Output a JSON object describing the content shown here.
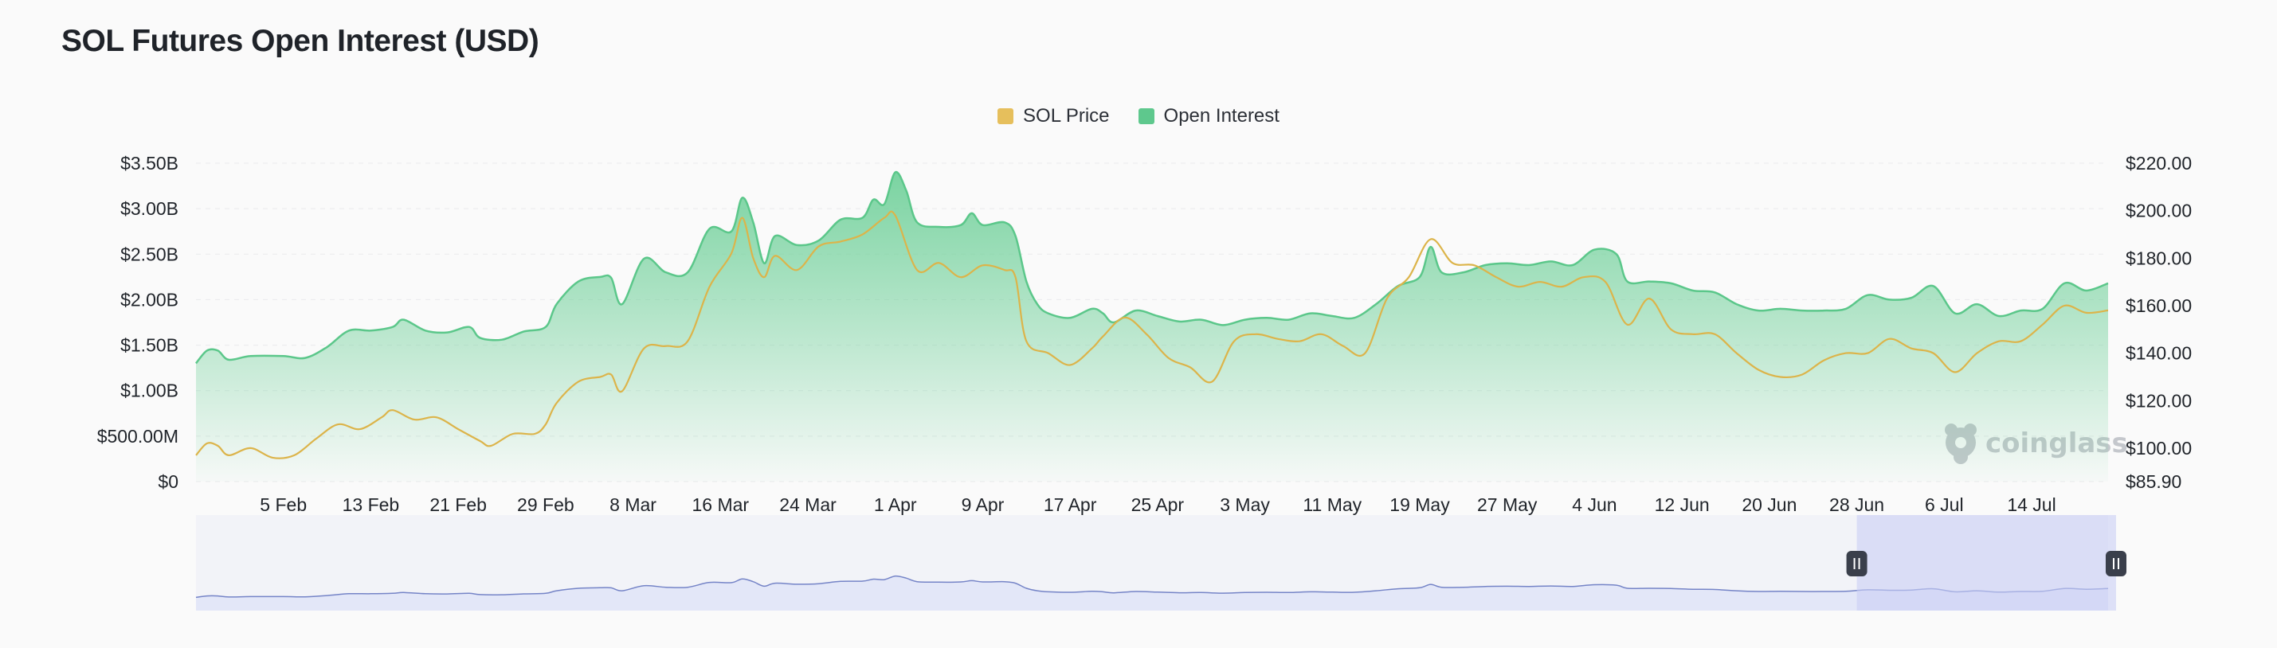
{
  "page": {
    "title": "SOL Futures Open Interest (USD)"
  },
  "legend": [
    {
      "label": "SOL Price",
      "color": "#e6bf5c"
    },
    {
      "label": "Open Interest",
      "color": "#5ec88d"
    }
  ],
  "watermark": {
    "text": "coinglass",
    "icon": "coinglass-logo-icon"
  },
  "colors": {
    "price_line": "#dcb44a",
    "oi_line": "#5bc78a",
    "oi_fill_top": "#6ccf97",
    "navigator_fill": "#e3e7f8",
    "navigator_line": "#7584c7",
    "navigator_selection": "#c9cff5",
    "handle": "#3a3f4b"
  },
  "navigator": {
    "selection_start": "2024-06-28",
    "selection_end": "2024-07-21"
  },
  "chart_data": {
    "type": "area",
    "title": "SOL Futures Open Interest (USD)",
    "legend_position": "top-center",
    "grid": true,
    "x_start": "2024-01-28",
    "x_end": "2024-07-21",
    "x_tick_labels": [
      "5 Feb",
      "13 Feb",
      "21 Feb",
      "29 Feb",
      "8 Mar",
      "16 Mar",
      "24 Mar",
      "1 Apr",
      "9 Apr",
      "17 Apr",
      "25 Apr",
      "3 May",
      "11 May",
      "19 May",
      "27 May",
      "4 Jun",
      "12 Jun",
      "20 Jun",
      "28 Jun",
      "6 Jul",
      "14 Jul"
    ],
    "x_tick_dates": [
      "2024-02-05",
      "2024-02-13",
      "2024-02-21",
      "2024-02-29",
      "2024-03-08",
      "2024-03-16",
      "2024-03-24",
      "2024-04-01",
      "2024-04-09",
      "2024-04-17",
      "2024-04-25",
      "2024-05-03",
      "2024-05-11",
      "2024-05-19",
      "2024-05-27",
      "2024-06-04",
      "2024-06-12",
      "2024-06-20",
      "2024-06-28",
      "2024-07-06",
      "2024-07-14"
    ],
    "y_left": {
      "min": 0,
      "max": 3.5,
      "unit": "B USD",
      "tick_values": [
        0,
        0.5,
        1,
        1.5,
        2,
        2.5,
        3,
        3.5
      ],
      "tick_labels": [
        "$0",
        "$500.00M",
        "$1.00B",
        "$1.50B",
        "$2.00B",
        "$2.50B",
        "$3.00B",
        "$3.50B"
      ]
    },
    "y_right": {
      "min": 85.9,
      "max": 220,
      "unit": "USD",
      "tick_values": [
        85.9,
        100,
        120,
        140,
        160,
        180,
        200,
        220
      ],
      "tick_labels": [
        "$85.90",
        "$100.00",
        "$120.00",
        "$140.00",
        "$160.00",
        "$180.00",
        "$200.00",
        "$220.00"
      ]
    },
    "series": [
      {
        "name": "Open Interest",
        "axis": "left",
        "points": [
          [
            "2024-01-28",
            1.3
          ],
          [
            "2024-01-29",
            1.44
          ],
          [
            "2024-01-30",
            1.44
          ],
          [
            "2024-01-31",
            1.34
          ],
          [
            "2024-02-02",
            1.38
          ],
          [
            "2024-02-05",
            1.38
          ],
          [
            "2024-02-07",
            1.36
          ],
          [
            "2024-02-09",
            1.48
          ],
          [
            "2024-02-11",
            1.66
          ],
          [
            "2024-02-13",
            1.66
          ],
          [
            "2024-02-15",
            1.7
          ],
          [
            "2024-02-16",
            1.78
          ],
          [
            "2024-02-18",
            1.66
          ],
          [
            "2024-02-20",
            1.64
          ],
          [
            "2024-02-22",
            1.7
          ],
          [
            "2024-02-23",
            1.58
          ],
          [
            "2024-02-25",
            1.56
          ],
          [
            "2024-02-27",
            1.65
          ],
          [
            "2024-02-29",
            1.7
          ],
          [
            "2024-03-01",
            1.95
          ],
          [
            "2024-03-03",
            2.2
          ],
          [
            "2024-03-05",
            2.25
          ],
          [
            "2024-03-06",
            2.24
          ],
          [
            "2024-03-07",
            1.95
          ],
          [
            "2024-03-09",
            2.45
          ],
          [
            "2024-03-11",
            2.3
          ],
          [
            "2024-03-13",
            2.3
          ],
          [
            "2024-03-15",
            2.78
          ],
          [
            "2024-03-17",
            2.75
          ],
          [
            "2024-03-18",
            3.12
          ],
          [
            "2024-03-19",
            2.85
          ],
          [
            "2024-03-20",
            2.4
          ],
          [
            "2024-03-21",
            2.7
          ],
          [
            "2024-03-23",
            2.6
          ],
          [
            "2024-03-25",
            2.65
          ],
          [
            "2024-03-27",
            2.88
          ],
          [
            "2024-03-29",
            2.9
          ],
          [
            "2024-03-30",
            3.1
          ],
          [
            "2024-03-31",
            3.05
          ],
          [
            "2024-04-01",
            3.4
          ],
          [
            "2024-04-02",
            3.2
          ],
          [
            "2024-04-03",
            2.85
          ],
          [
            "2024-04-05",
            2.8
          ],
          [
            "2024-04-07",
            2.82
          ],
          [
            "2024-04-08",
            2.95
          ],
          [
            "2024-04-09",
            2.82
          ],
          [
            "2024-04-11",
            2.85
          ],
          [
            "2024-04-12",
            2.7
          ],
          [
            "2024-04-13",
            2.2
          ],
          [
            "2024-04-14",
            1.95
          ],
          [
            "2024-04-15",
            1.85
          ],
          [
            "2024-04-17",
            1.8
          ],
          [
            "2024-04-19",
            1.9
          ],
          [
            "2024-04-20",
            1.85
          ],
          [
            "2024-04-21",
            1.75
          ],
          [
            "2024-04-23",
            1.88
          ],
          [
            "2024-04-25",
            1.82
          ],
          [
            "2024-04-27",
            1.76
          ],
          [
            "2024-04-29",
            1.78
          ],
          [
            "2024-05-01",
            1.72
          ],
          [
            "2024-05-03",
            1.78
          ],
          [
            "2024-05-05",
            1.8
          ],
          [
            "2024-05-07",
            1.78
          ],
          [
            "2024-05-09",
            1.85
          ],
          [
            "2024-05-11",
            1.82
          ],
          [
            "2024-05-13",
            1.8
          ],
          [
            "2024-05-15",
            1.95
          ],
          [
            "2024-05-17",
            2.15
          ],
          [
            "2024-05-19",
            2.25
          ],
          [
            "2024-05-20",
            2.58
          ],
          [
            "2024-05-21",
            2.3
          ],
          [
            "2024-05-23",
            2.3
          ],
          [
            "2024-05-25",
            2.38
          ],
          [
            "2024-05-27",
            2.4
          ],
          [
            "2024-05-29",
            2.38
          ],
          [
            "2024-05-31",
            2.42
          ],
          [
            "2024-06-02",
            2.38
          ],
          [
            "2024-06-04",
            2.55
          ],
          [
            "2024-06-06",
            2.5
          ],
          [
            "2024-06-07",
            2.2
          ],
          [
            "2024-06-09",
            2.2
          ],
          [
            "2024-06-11",
            2.18
          ],
          [
            "2024-06-13",
            2.1
          ],
          [
            "2024-06-15",
            2.08
          ],
          [
            "2024-06-17",
            1.95
          ],
          [
            "2024-06-19",
            1.88
          ],
          [
            "2024-06-21",
            1.9
          ],
          [
            "2024-06-23",
            1.88
          ],
          [
            "2024-06-25",
            1.88
          ],
          [
            "2024-06-27",
            1.9
          ],
          [
            "2024-06-29",
            2.05
          ],
          [
            "2024-07-01",
            2.0
          ],
          [
            "2024-07-03",
            2.02
          ],
          [
            "2024-07-05",
            2.15
          ],
          [
            "2024-07-07",
            1.85
          ],
          [
            "2024-07-09",
            1.95
          ],
          [
            "2024-07-11",
            1.82
          ],
          [
            "2024-07-13",
            1.88
          ],
          [
            "2024-07-15",
            1.9
          ],
          [
            "2024-07-17",
            2.18
          ],
          [
            "2024-07-19",
            2.1
          ],
          [
            "2024-07-21",
            2.18
          ]
        ]
      },
      {
        "name": "SOL Price",
        "axis": "right",
        "points": [
          [
            "2024-01-28",
            97
          ],
          [
            "2024-01-29",
            102
          ],
          [
            "2024-01-30",
            101
          ],
          [
            "2024-01-31",
            97
          ],
          [
            "2024-02-02",
            100
          ],
          [
            "2024-02-04",
            96
          ],
          [
            "2024-02-06",
            97
          ],
          [
            "2024-02-08",
            104
          ],
          [
            "2024-02-10",
            110
          ],
          [
            "2024-02-12",
            108
          ],
          [
            "2024-02-14",
            113
          ],
          [
            "2024-02-15",
            116
          ],
          [
            "2024-02-17",
            112
          ],
          [
            "2024-02-19",
            113
          ],
          [
            "2024-02-21",
            108
          ],
          [
            "2024-02-23",
            103
          ],
          [
            "2024-02-24",
            101
          ],
          [
            "2024-02-26",
            106
          ],
          [
            "2024-02-28",
            106
          ],
          [
            "2024-02-29",
            110
          ],
          [
            "2024-03-01",
            119
          ],
          [
            "2024-03-03",
            128
          ],
          [
            "2024-03-05",
            130
          ],
          [
            "2024-03-06",
            131
          ],
          [
            "2024-03-07",
            124
          ],
          [
            "2024-03-09",
            142
          ],
          [
            "2024-03-11",
            143
          ],
          [
            "2024-03-13",
            145
          ],
          [
            "2024-03-15",
            168
          ],
          [
            "2024-03-17",
            182
          ],
          [
            "2024-03-18",
            197
          ],
          [
            "2024-03-19",
            180
          ],
          [
            "2024-03-20",
            172
          ],
          [
            "2024-03-21",
            181
          ],
          [
            "2024-03-23",
            175
          ],
          [
            "2024-03-25",
            185
          ],
          [
            "2024-03-27",
            187
          ],
          [
            "2024-03-29",
            190
          ],
          [
            "2024-03-31",
            197
          ],
          [
            "2024-04-01",
            198
          ],
          [
            "2024-04-03",
            175
          ],
          [
            "2024-04-05",
            178
          ],
          [
            "2024-04-07",
            172
          ],
          [
            "2024-04-09",
            177
          ],
          [
            "2024-04-11",
            175
          ],
          [
            "2024-04-12",
            172
          ],
          [
            "2024-04-13",
            145
          ],
          [
            "2024-04-15",
            140
          ],
          [
            "2024-04-17",
            135
          ],
          [
            "2024-04-19",
            142
          ],
          [
            "2024-04-20",
            147
          ],
          [
            "2024-04-22",
            155
          ],
          [
            "2024-04-24",
            148
          ],
          [
            "2024-04-26",
            138
          ],
          [
            "2024-04-28",
            134
          ],
          [
            "2024-04-30",
            128
          ],
          [
            "2024-05-02",
            145
          ],
          [
            "2024-05-04",
            148
          ],
          [
            "2024-05-06",
            146
          ],
          [
            "2024-05-08",
            145
          ],
          [
            "2024-05-10",
            148
          ],
          [
            "2024-05-12",
            143
          ],
          [
            "2024-05-14",
            140
          ],
          [
            "2024-05-16",
            163
          ],
          [
            "2024-05-18",
            172
          ],
          [
            "2024-05-20",
            188
          ],
          [
            "2024-05-22",
            178
          ],
          [
            "2024-05-24",
            177
          ],
          [
            "2024-05-26",
            172
          ],
          [
            "2024-05-28",
            168
          ],
          [
            "2024-05-30",
            170
          ],
          [
            "2024-06-01",
            168
          ],
          [
            "2024-06-03",
            172
          ],
          [
            "2024-06-05",
            170
          ],
          [
            "2024-06-07",
            152
          ],
          [
            "2024-06-09",
            163
          ],
          [
            "2024-06-11",
            150
          ],
          [
            "2024-06-13",
            148
          ],
          [
            "2024-06-15",
            148
          ],
          [
            "2024-06-17",
            140
          ],
          [
            "2024-06-19",
            133
          ],
          [
            "2024-06-21",
            130
          ],
          [
            "2024-06-23",
            131
          ],
          [
            "2024-06-25",
            137
          ],
          [
            "2024-06-27",
            140
          ],
          [
            "2024-06-29",
            140
          ],
          [
            "2024-07-01",
            146
          ],
          [
            "2024-07-03",
            142
          ],
          [
            "2024-07-05",
            140
          ],
          [
            "2024-07-07",
            132
          ],
          [
            "2024-07-09",
            140
          ],
          [
            "2024-07-11",
            145
          ],
          [
            "2024-07-13",
            145
          ],
          [
            "2024-07-15",
            152
          ],
          [
            "2024-07-17",
            160
          ],
          [
            "2024-07-19",
            157
          ],
          [
            "2024-07-21",
            158
          ]
        ]
      }
    ]
  }
}
